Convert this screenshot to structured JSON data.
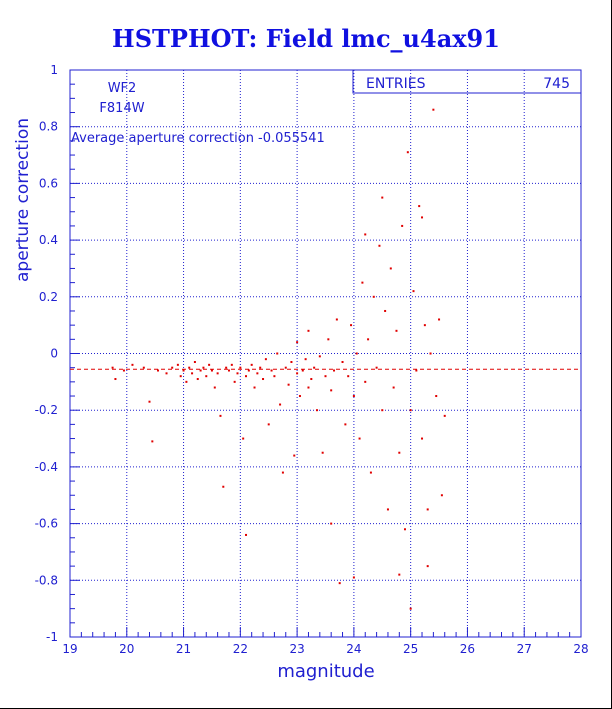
{
  "title": "HSTPHOT: Field lmc_u4ax91",
  "annotations": {
    "camera": "WF2",
    "filter": "F814W",
    "average_text": "Average aperture correction -0.055541"
  },
  "stats": {
    "label": "ENTRIES",
    "value": "745"
  },
  "colors": {
    "axis": "#2020d0",
    "points": "#e00000",
    "title": "#1010e0"
  },
  "chart_data": {
    "type": "scatter",
    "title": "HSTPHOT: Field lmc_u4ax91",
    "xlabel": "magnitude",
    "ylabel": "aperture correction",
    "xlim": [
      19,
      28
    ],
    "ylim": [
      -1,
      1
    ],
    "xticks": [
      19,
      20,
      21,
      22,
      23,
      24,
      25,
      26,
      27,
      28
    ],
    "xtick_labels": [
      "19",
      "20",
      "21",
      "22",
      "23",
      "24",
      "25",
      "26",
      "27",
      "28"
    ],
    "yticks": [
      -1,
      -0.8,
      -0.6,
      -0.4,
      -0.2,
      0,
      0.2,
      0.4,
      0.6,
      0.8,
      1
    ],
    "ytick_labels": [
      "-1",
      "-0.8",
      "-0.6",
      "-0.4",
      "-0.2",
      "0",
      "0.2",
      "0.4",
      "0.6",
      "0.8",
      "1"
    ],
    "grid": true,
    "reference_line": {
      "y": -0.055541,
      "style": "dashed"
    },
    "entries": 745,
    "series": [
      {
        "points": [
          [
            19.75,
            -0.05
          ],
          [
            19.8,
            -0.09
          ],
          [
            19.95,
            -0.06
          ],
          [
            20.1,
            -0.04
          ],
          [
            20.3,
            -0.05
          ],
          [
            20.4,
            -0.17
          ],
          [
            20.45,
            -0.31
          ],
          [
            20.55,
            -0.06
          ],
          [
            20.7,
            -0.07
          ],
          [
            20.8,
            -0.05
          ],
          [
            20.9,
            -0.04
          ],
          [
            20.95,
            -0.08
          ],
          [
            21.0,
            -0.06
          ],
          [
            21.05,
            -0.1
          ],
          [
            21.1,
            -0.05
          ],
          [
            21.15,
            -0.07
          ],
          [
            21.2,
            -0.03
          ],
          [
            21.25,
            -0.09
          ],
          [
            21.3,
            -0.06
          ],
          [
            21.35,
            -0.05
          ],
          [
            21.4,
            -0.08
          ],
          [
            21.45,
            -0.04
          ],
          [
            21.5,
            -0.06
          ],
          [
            21.55,
            -0.12
          ],
          [
            21.6,
            -0.07
          ],
          [
            21.65,
            -0.22
          ],
          [
            21.7,
            -0.47
          ],
          [
            21.75,
            -0.05
          ],
          [
            21.8,
            -0.06
          ],
          [
            21.85,
            -0.04
          ],
          [
            21.9,
            -0.1
          ],
          [
            21.95,
            -0.07
          ],
          [
            22.0,
            -0.05
          ],
          [
            22.05,
            -0.3
          ],
          [
            22.1,
            -0.64
          ],
          [
            22.1,
            -0.08
          ],
          [
            22.15,
            -0.06
          ],
          [
            22.2,
            -0.04
          ],
          [
            22.25,
            -0.12
          ],
          [
            22.3,
            -0.07
          ],
          [
            22.35,
            -0.05
          ],
          [
            22.4,
            -0.09
          ],
          [
            22.45,
            -0.02
          ],
          [
            22.5,
            -0.25
          ],
          [
            22.55,
            -0.06
          ],
          [
            22.6,
            -0.08
          ],
          [
            22.65,
            0.0
          ],
          [
            22.7,
            -0.18
          ],
          [
            22.75,
            -0.42
          ],
          [
            22.8,
            -0.05
          ],
          [
            22.85,
            -0.11
          ],
          [
            22.9,
            -0.03
          ],
          [
            22.95,
            -0.36
          ],
          [
            23.0,
            -0.07
          ],
          [
            23.0,
            0.04
          ],
          [
            23.05,
            -0.15
          ],
          [
            23.1,
            -0.06
          ],
          [
            23.15,
            -0.02
          ],
          [
            23.2,
            -0.12
          ],
          [
            23.2,
            0.08
          ],
          [
            23.25,
            -0.09
          ],
          [
            23.3,
            -0.05
          ],
          [
            23.35,
            -0.2
          ],
          [
            23.4,
            -0.01
          ],
          [
            23.45,
            -0.35
          ],
          [
            23.5,
            -0.08
          ],
          [
            23.55,
            0.05
          ],
          [
            23.6,
            -0.6
          ],
          [
            23.6,
            -0.13
          ],
          [
            23.65,
            -0.06
          ],
          [
            23.7,
            0.12
          ],
          [
            23.75,
            -0.81
          ],
          [
            23.8,
            -0.03
          ],
          [
            23.85,
            -0.25
          ],
          [
            23.9,
            -0.08
          ],
          [
            23.95,
            0.1
          ],
          [
            24.0,
            -0.79
          ],
          [
            24.0,
            -0.15
          ],
          [
            24.05,
            0.0
          ],
          [
            24.1,
            -0.3
          ],
          [
            24.15,
            0.25
          ],
          [
            24.2,
            -0.1
          ],
          [
            24.25,
            0.05
          ],
          [
            24.3,
            -0.42
          ],
          [
            24.35,
            0.2
          ],
          [
            24.4,
            -0.05
          ],
          [
            24.45,
            0.38
          ],
          [
            24.5,
            -0.2
          ],
          [
            24.55,
            0.15
          ],
          [
            24.6,
            -0.55
          ],
          [
            24.65,
            0.3
          ],
          [
            24.7,
            -0.12
          ],
          [
            24.75,
            0.08
          ],
          [
            24.8,
            -0.35
          ],
          [
            24.85,
            0.45
          ],
          [
            24.9,
            -0.62
          ],
          [
            24.95,
            0.71
          ],
          [
            25.0,
            -0.9
          ],
          [
            25.0,
            -0.2
          ],
          [
            25.05,
            0.22
          ],
          [
            25.1,
            -0.06
          ],
          [
            25.15,
            0.52
          ],
          [
            25.2,
            -0.3
          ],
          [
            25.25,
            0.1
          ],
          [
            25.3,
            -0.55
          ],
          [
            25.35,
            0.0
          ],
          [
            25.4,
            0.86
          ],
          [
            25.45,
            -0.15
          ],
          [
            25.5,
            0.12
          ],
          [
            25.55,
            -0.5
          ],
          [
            25.6,
            -0.22
          ],
          [
            24.5,
            0.55
          ],
          [
            24.2,
            0.42
          ],
          [
            25.2,
            0.48
          ],
          [
            24.8,
            -0.78
          ],
          [
            25.3,
            -0.75
          ]
        ]
      }
    ]
  }
}
